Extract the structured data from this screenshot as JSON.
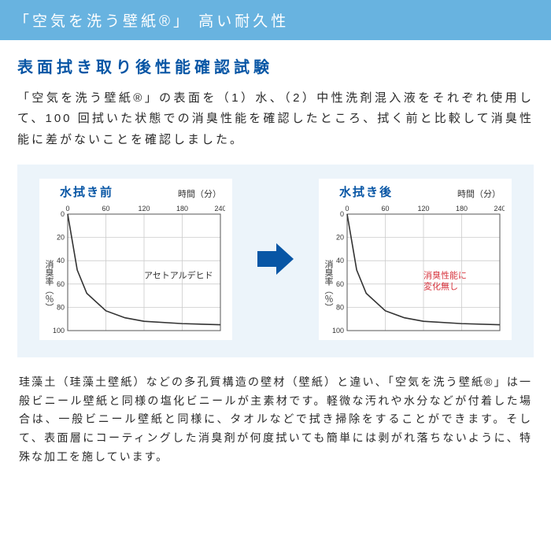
{
  "header": {
    "title": "「空気を洗う壁紙®」 高い耐久性"
  },
  "section_title": "表面拭き取り後性能確認試験",
  "body_text": "「空気を洗う壁紙®」の表面を（1）水、（2）中性洗剤混入液をそれぞれ使用して、100 回拭いた状態での消臭性能を確認したところ、拭く前と比較して消臭性能に差がないことを確認しました。",
  "chart_before": {
    "title": "水拭き前",
    "x_axis_label": "時間（分）",
    "y_axis_label": "消臭率（％）",
    "x_ticks": [
      0,
      60,
      120,
      180,
      240
    ],
    "y_ticks": [
      0,
      20,
      40,
      60,
      80,
      100
    ],
    "series_color": "#333333",
    "grid_color": "#cccccc",
    "axis_color": "#555555",
    "background_color": "#ffffff",
    "annotation_text": "アセトアルデヒド",
    "annotation_color": "#333333",
    "curve": [
      {
        "x": 0,
        "y": 0
      },
      {
        "x": 15,
        "y": 48
      },
      {
        "x": 30,
        "y": 68
      },
      {
        "x": 60,
        "y": 83
      },
      {
        "x": 90,
        "y": 89
      },
      {
        "x": 120,
        "y": 92
      },
      {
        "x": 180,
        "y": 94
      },
      {
        "x": 240,
        "y": 95
      }
    ]
  },
  "chart_after": {
    "title": "水拭き後",
    "x_axis_label": "時間（分）",
    "y_axis_label": "消臭率（％）",
    "x_ticks": [
      0,
      60,
      120,
      180,
      240
    ],
    "y_ticks": [
      0,
      20,
      40,
      60,
      80,
      100
    ],
    "series_color": "#333333",
    "grid_color": "#cccccc",
    "axis_color": "#555555",
    "background_color": "#ffffff",
    "annotation_text": "消臭性能に\n変化無し",
    "annotation_color": "#d6303a",
    "curve": [
      {
        "x": 0,
        "y": 0
      },
      {
        "x": 15,
        "y": 48
      },
      {
        "x": 30,
        "y": 68
      },
      {
        "x": 60,
        "y": 83
      },
      {
        "x": 90,
        "y": 89
      },
      {
        "x": 120,
        "y": 92
      },
      {
        "x": 180,
        "y": 94
      },
      {
        "x": 240,
        "y": 95
      }
    ]
  },
  "arrow_color": "#0856a5",
  "footer_text": "珪藻土（珪藻土壁紙）などの多孔質構造の壁材（壁紙）と違い、「空気を洗う壁紙®」は一般ビニール壁紙と同様の塩化ビニールが主素材です。軽微な汚れや水分などが付着した場合は、一般ビニール壁紙と同様に、タオルなどで拭き掃除をすることができます。そして、表面層にコーティングした消臭剤が何度拭いても簡単には剥がれ落ちないように、特殊な加工を施しています。"
}
